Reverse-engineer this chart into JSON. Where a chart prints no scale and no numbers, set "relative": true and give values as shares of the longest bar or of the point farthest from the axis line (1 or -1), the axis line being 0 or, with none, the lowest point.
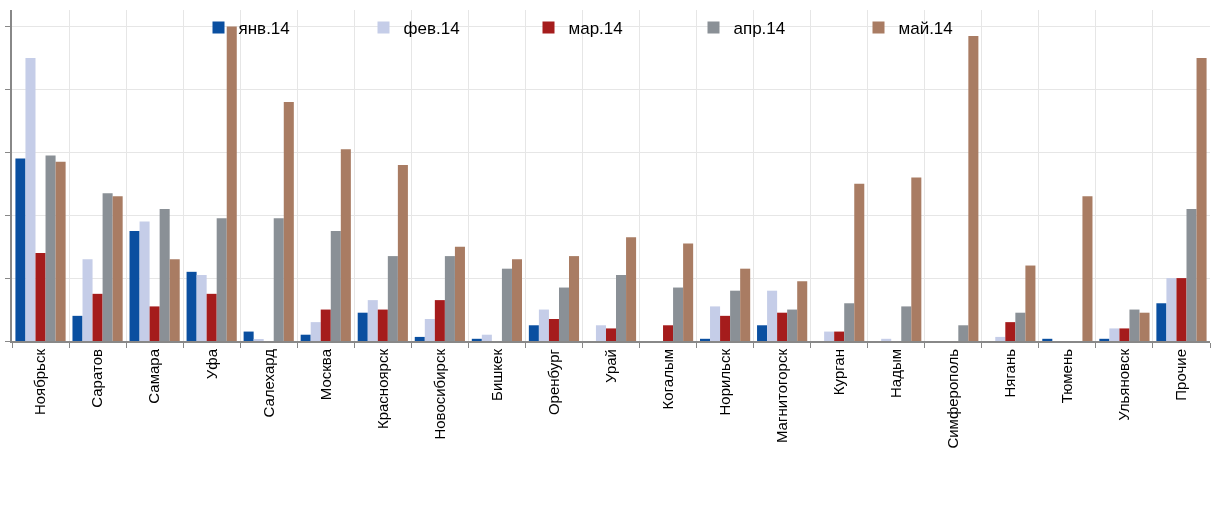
{
  "chart_data": {
    "type": "bar",
    "relative": true,
    "grid": true,
    "legend": "top",
    "categories": [
      "Ноябрьск",
      "Саратов",
      "Самара",
      "Уфа",
      "Салехард",
      "Москва",
      "Красноярск",
      "Новосибирск",
      "Бишкек",
      "Оренбург",
      "Урай",
      "Когалым",
      "Норильск",
      "Магнитогорск",
      "Курган",
      "Надым",
      "Симферополь",
      "Нягань",
      "Тюмень",
      "Ульяновск",
      "Прочие"
    ],
    "series": [
      {
        "name": "янв.14",
        "color": "#0a4fa0",
        "values": [
          0.58,
          0.08,
          0.35,
          0.22,
          0.03,
          0.02,
          0.09,
          0.013,
          0.007,
          0.05,
          0,
          0,
          0.007,
          0.05,
          0,
          0,
          0,
          0,
          0.007,
          0.007,
          0.12
        ]
      },
      {
        "name": "фев.14",
        "color": "#c5cde8",
        "values": [
          0.9,
          0.26,
          0.38,
          0.21,
          0.005,
          0.06,
          0.13,
          0.07,
          0.02,
          0.1,
          0.05,
          null,
          0.11,
          0.16,
          0.03,
          0.007,
          0,
          0.013,
          0,
          0.04,
          0.2
        ]
      },
      {
        "name": "мар.14",
        "color": "#a51c1c",
        "values": [
          0.28,
          0.15,
          0.11,
          0.15,
          0,
          0.1,
          0.1,
          0.13,
          0,
          0.07,
          0.04,
          0.05,
          0.08,
          0.09,
          0.03,
          0,
          0,
          0.06,
          0,
          0.04,
          0.2
        ]
      },
      {
        "name": "апр.14",
        "color": "#8a9096",
        "values": [
          0.59,
          0.47,
          0.42,
          0.39,
          0.39,
          0.35,
          0.27,
          0.27,
          0.23,
          0.17,
          0.21,
          0.17,
          0.16,
          0.1,
          0.12,
          0.11,
          0.05,
          0.09,
          0,
          0.1,
          0.42
        ]
      },
      {
        "name": "май.14",
        "color": "#a97c63",
        "values": [
          0.57,
          0.46,
          0.26,
          1,
          0.76,
          0.61,
          0.56,
          0.3,
          0.26,
          0.27,
          0.33,
          0.31,
          0.23,
          0.19,
          0.5,
          0.52,
          0.97,
          0.24,
          0.46,
          0.09,
          0.9
        ]
      }
    ]
  }
}
